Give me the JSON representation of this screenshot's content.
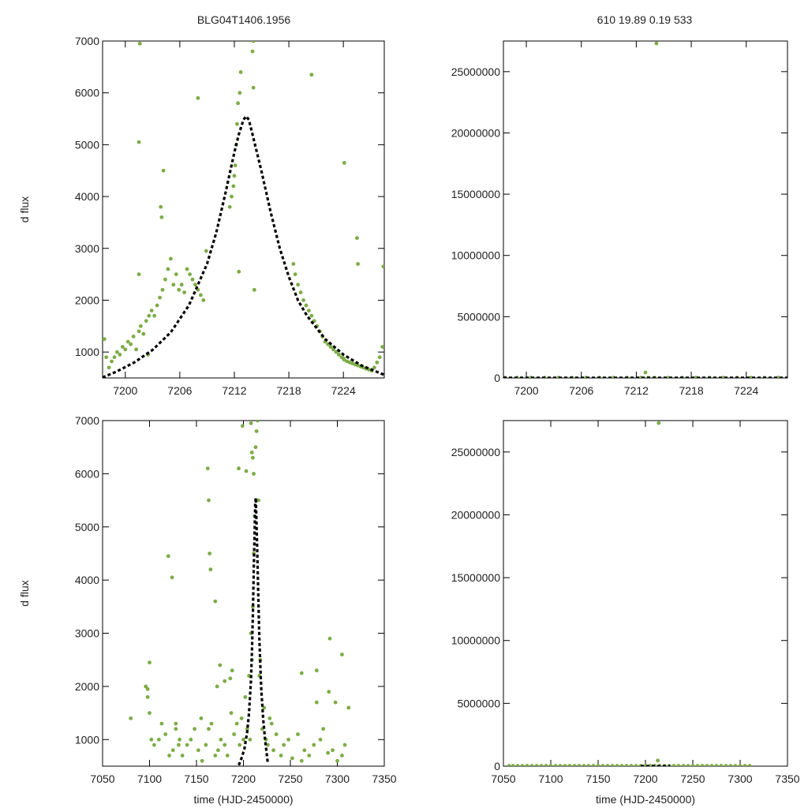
{
  "figure": {
    "title_left": "BLG04T1406.1956",
    "title_right": "610  19.89  0.19  533"
  },
  "colors": {
    "points": "#7cac45",
    "model": "#000000",
    "frame": "#000000",
    "text": "#222222"
  },
  "chart_data": [
    {
      "id": "p1",
      "type": "scatter",
      "title": "BLG04T1406.1956",
      "xlabel": "",
      "ylabel": "d flux",
      "xlim": [
        7197.5,
        7228.5
      ],
      "ylim": [
        500,
        7000
      ],
      "xticks": [
        7200,
        7206,
        7212,
        7218,
        7224
      ],
      "yticks": [
        1000,
        2000,
        3000,
        4000,
        5000,
        6000,
        7000
      ],
      "grid": false,
      "series": [
        {
          "style": "points",
          "x": [
            7197.7,
            7197.9,
            7198.2,
            7198.5,
            7198.8,
            7199.1,
            7199.4,
            7199.7,
            7200.0,
            7200.3,
            7200.6,
            7200.9,
            7201.2,
            7201.5,
            7201.5,
            7201.7,
            7202.0,
            7202.3,
            7202.6,
            7202.9,
            7203.2,
            7203.5,
            7203.8,
            7204.1,
            7204.2,
            7204.4,
            7204.7,
            7205.0,
            7205.3,
            7205.6,
            7205.9,
            7206.2,
            7206.5,
            7206.8,
            7207.1,
            7207.4,
            7207.7,
            7208.0,
            7208.3,
            7208.6,
            7208.9,
            7211.5,
            7211.7,
            7211.9,
            7212.0,
            7212.1,
            7212.2,
            7212.3,
            7212.4,
            7212.6,
            7212.7,
            7214.0,
            7214.1,
            7214.2,
            7218.5,
            7218.7,
            7219.0,
            7219.3,
            7219.6,
            7219.9,
            7220.2,
            7220.5,
            7220.8,
            7221.1,
            7221.4,
            7221.7,
            7222.0,
            7222.3,
            7222.6,
            7222.9,
            7223.2,
            7223.5,
            7223.8,
            7224.0,
            7224.1,
            7224.4,
            7224.7,
            7225.0,
            7225.3,
            7225.6,
            7225.9,
            7226.2,
            7226.5,
            7226.8,
            7227.1,
            7227.4,
            7227.7,
            7228.0,
            7228.3,
            7201.5,
            7201.6,
            7208.0,
            7212.5,
            7214.1,
            7220.5,
            7224.1,
            7225.5,
            7225.6,
            7228.4,
            7203.9,
            7204.0,
            7202.5
          ],
          "y": [
            1250,
            900,
            700,
            820,
            900,
            1000,
            950,
            1100,
            1050,
            1200,
            1150,
            1300,
            1050,
            1400,
            2500,
            1500,
            1350,
            1600,
            1700,
            1800,
            1700,
            1900,
            2050,
            2200,
            4500,
            2400,
            2600,
            2800,
            2300,
            2500,
            2200,
            2300,
            2150,
            2600,
            2500,
            2400,
            2300,
            2200,
            2100,
            2000,
            2950,
            3800,
            4000,
            4200,
            4400,
            4600,
            5000,
            5400,
            5800,
            6000,
            6400,
            6800,
            6100,
            2200,
            2700,
            2500,
            2300,
            2150,
            2000,
            1900,
            1800,
            1700,
            1600,
            1500,
            1400,
            1300,
            1200,
            1150,
            1100,
            1050,
            1000,
            950,
            900,
            880,
            850,
            820,
            800,
            780,
            760,
            740,
            720,
            700,
            680,
            660,
            640,
            700,
            800,
            900,
            1100,
            5050,
            6950,
            5900,
            2550,
            7000,
            6350,
            4650,
            3200,
            2700,
            2650,
            3800,
            3600,
            950
          ]
        },
        {
          "name": "",
          "style": "dashed-line",
          "x": [
            7197.5,
            7199,
            7201,
            7203,
            7205,
            7207,
            7209,
            7210,
            7211,
            7212,
            7212.5,
            7213,
            7213.3,
            7213.6,
            7214,
            7215,
            7216,
            7217,
            7218,
            7219,
            7220,
            7222,
            7224,
            7226,
            7228.5
          ],
          "y": [
            510,
            620,
            800,
            1040,
            1380,
            1900,
            2700,
            3300,
            4050,
            4850,
            5200,
            5480,
            5550,
            5480,
            5200,
            4480,
            3700,
            3000,
            2450,
            2000,
            1700,
            1250,
            950,
            740,
            560
          ]
        }
      ]
    },
    {
      "id": "p2",
      "type": "scatter",
      "xlabel": "",
      "ylabel": "",
      "xlim": [
        7197.5,
        7228.5
      ],
      "ylim": [
        0,
        27500000
      ],
      "xticks": [
        7200,
        7206,
        7212,
        7218,
        7224
      ],
      "yticks": [
        0,
        5000000,
        10000000,
        15000000,
        20000000,
        25000000
      ],
      "grid": false,
      "series": [
        {
          "style": "points",
          "x": [
            7197.7,
            7199,
            7200.5,
            7202,
            7203.5,
            7205,
            7206.5,
            7208,
            7209.5,
            7211,
            7212.5,
            7213.3,
            7214,
            7215.5,
            7217,
            7218.5,
            7220,
            7221.5,
            7223,
            7224.5,
            7226,
            7227.5,
            7214.2,
            7213.0
          ],
          "y": [
            20000,
            20000,
            20000,
            20000,
            20000,
            20000,
            20000,
            20000,
            20000,
            20000,
            20000,
            20000,
            20000,
            20000,
            20000,
            20000,
            20000,
            20000,
            20000,
            20000,
            20000,
            20000,
            27300000,
            450000
          ]
        },
        {
          "name": "",
          "style": "dashed-line",
          "x": [
            7197.5,
            7228.5
          ],
          "y": [
            5000,
            5000
          ]
        }
      ]
    },
    {
      "id": "p3",
      "type": "scatter",
      "xlabel": "time (HJD-2450000)",
      "ylabel": "d flux",
      "xlim": [
        7050,
        7350
      ],
      "ylim": [
        500,
        7000
      ],
      "xticks": [
        7050,
        7100,
        7150,
        7200,
        7250,
        7300,
        7350
      ],
      "yticks": [
        1000,
        2000,
        3000,
        4000,
        5000,
        6000,
        7000
      ],
      "grid": false,
      "series": [
        {
          "style": "points",
          "x": [
            7080,
            7096,
            7098,
            7100,
            7102,
            7105,
            7110,
            7113,
            7117,
            7121,
            7125,
            7128,
            7131,
            7135,
            7140,
            7144,
            7148,
            7152,
            7156,
            7160,
            7163,
            7166,
            7170,
            7173,
            7176,
            7180,
            7183,
            7187,
            7190,
            7193,
            7196,
            7198,
            7200,
            7202,
            7204,
            7206,
            7207,
            7208,
            7209,
            7210,
            7211,
            7212,
            7213,
            7214,
            7215,
            7216,
            7217,
            7218,
            7220,
            7222,
            7224,
            7226,
            7228,
            7230,
            7232,
            7235,
            7240,
            7243,
            7248,
            7252,
            7258,
            7262,
            7265,
            7270,
            7275,
            7278,
            7282,
            7285,
            7290,
            7295,
            7300,
            7305,
            7308,
            7312,
            7120,
            7124,
            7162,
            7163,
            7164,
            7165,
            7170,
            7175,
            7180,
            7186,
            7195,
            7199,
            7203,
            7208,
            7209,
            7210,
            7211,
            7100,
            7098,
            7128,
            7132,
            7155,
            7172,
            7188,
            7262,
            7278,
            7292,
            7298,
            7305,
            7291
          ],
          "y": [
            1400,
            2000,
            1800,
            1500,
            1000,
            900,
            1000,
            1300,
            1100,
            700,
            800,
            1200,
            900,
            700,
            900,
            1000,
            1200,
            800,
            600,
            900,
            1200,
            1300,
            700,
            800,
            1000,
            900,
            700,
            1500,
            1100,
            1300,
            900,
            1400,
            1000,
            1800,
            1200,
            2200,
            1000,
            3000,
            2500,
            3500,
            4500,
            5200,
            6500,
            6800,
            7000,
            5500,
            2200,
            2500,
            1200,
            1600,
            1000,
            900,
            1400,
            1300,
            800,
            1100,
            700,
            900,
            1000,
            650,
            1100,
            600,
            800,
            700,
            900,
            1700,
            1000,
            1200,
            750,
            800,
            600,
            700,
            900,
            1600,
            4450,
            4050,
            6100,
            5500,
            4500,
            4200,
            3600,
            2400,
            2100,
            2150,
            6100,
            6900,
            6050,
            6950,
            6400,
            6300,
            6000,
            2450,
            1950,
            1300,
            1000,
            1400,
            2000,
            2300,
            2250,
            2300,
            2900,
            1700,
            2600,
            1900
          ]
        },
        {
          "name": "",
          "style": "dashed-line",
          "x": [
            7195,
            7198,
            7201,
            7204,
            7206,
            7208,
            7209,
            7210,
            7211,
            7212,
            7212.6,
            7213.2,
            7214,
            7215,
            7216,
            7217,
            7218,
            7219,
            7221,
            7223,
            7226
          ],
          "y": [
            520,
            650,
            820,
            1150,
            1500,
            2100,
            2600,
            3300,
            4200,
            5000,
            5450,
            5550,
            5000,
            4300,
            3600,
            2900,
            2400,
            1950,
            1400,
            1000,
            560
          ]
        }
      ]
    },
    {
      "id": "p4",
      "type": "scatter",
      "xlabel": "time (HJD-2450000)",
      "ylabel": "",
      "xlim": [
        7050,
        7350
      ],
      "ylim": [
        0,
        27500000
      ],
      "xticks": [
        7050,
        7100,
        7150,
        7200,
        7250,
        7300,
        7350
      ],
      "yticks": [
        0,
        5000000,
        10000000,
        15000000,
        20000000,
        25000000
      ],
      "grid": false,
      "series": [
        {
          "style": "points",
          "x": [
            7056,
            7060,
            7065,
            7070,
            7075,
            7080,
            7085,
            7090,
            7095,
            7100,
            7105,
            7110,
            7115,
            7120,
            7125,
            7130,
            7135,
            7140,
            7145,
            7150,
            7155,
            7160,
            7165,
            7170,
            7175,
            7180,
            7185,
            7190,
            7195,
            7200,
            7205,
            7210,
            7215,
            7220,
            7225,
            7230,
            7235,
            7240,
            7245,
            7250,
            7255,
            7260,
            7265,
            7270,
            7275,
            7280,
            7285,
            7290,
            7295,
            7300,
            7305,
            7310,
            7214,
            7213
          ],
          "y": [
            30000,
            30000,
            30000,
            30000,
            30000,
            30000,
            30000,
            30000,
            30000,
            30000,
            30000,
            30000,
            30000,
            30000,
            30000,
            30000,
            30000,
            30000,
            30000,
            30000,
            30000,
            30000,
            30000,
            30000,
            30000,
            30000,
            30000,
            30000,
            30000,
            30000,
            30000,
            30000,
            30000,
            30000,
            30000,
            30000,
            30000,
            30000,
            30000,
            30000,
            30000,
            30000,
            30000,
            30000,
            30000,
            30000,
            30000,
            30000,
            30000,
            30000,
            30000,
            30000,
            27300000,
            450000
          ]
        },
        {
          "name": "",
          "style": "dashed-line",
          "x": [
            7195,
            7226
          ],
          "y": [
            5000,
            5000
          ]
        }
      ]
    }
  ]
}
